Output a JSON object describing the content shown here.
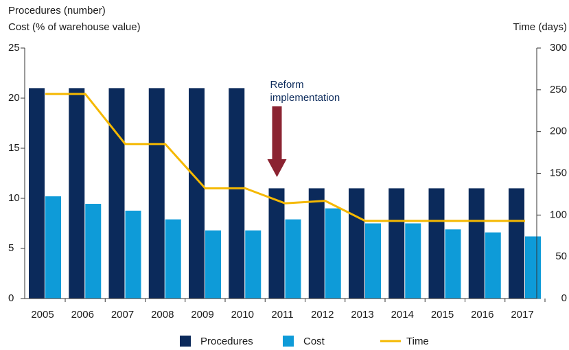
{
  "chart_data": {
    "type": "bar",
    "ylabel": [
      "Procedures (number)",
      "Cost (% of warehouse value)"
    ],
    "y2label": "Time (days)",
    "categories": [
      "2005",
      "2006",
      "2007",
      "2008",
      "2009",
      "2010",
      "2011",
      "2012",
      "2013",
      "2014",
      "2015",
      "2016",
      "2017"
    ],
    "series": [
      {
        "name": "Procedures",
        "color": "#0b2a5b",
        "values": [
          21,
          21,
          21,
          21,
          21,
          21,
          11,
          11,
          11,
          11,
          11,
          11,
          11
        ]
      },
      {
        "name": "Cost",
        "color": "#0e9bd8",
        "values": [
          10.2,
          9.45,
          8.77,
          7.9,
          6.8,
          6.8,
          7.9,
          9.0,
          7.5,
          7.5,
          6.9,
          6.6,
          6.2
        ]
      },
      {
        "name": "Time",
        "color": "#f5b800",
        "type": "line",
        "axis": "y2",
        "values": [
          245,
          245,
          185,
          185,
          132,
          132,
          114,
          117,
          93,
          93,
          93,
          93,
          93
        ]
      }
    ],
    "ylim": [
      0,
      25
    ],
    "yticks": [
      0,
      5,
      10,
      15,
      20,
      25
    ],
    "y2lim": [
      0,
      300
    ],
    "y2ticks": [
      0,
      50,
      100,
      150,
      200,
      250,
      300
    ],
    "annotation": {
      "text": [
        "Reform",
        "implementation"
      ],
      "x": "2011",
      "color": "#8b2331"
    },
    "legend": "bottom"
  }
}
